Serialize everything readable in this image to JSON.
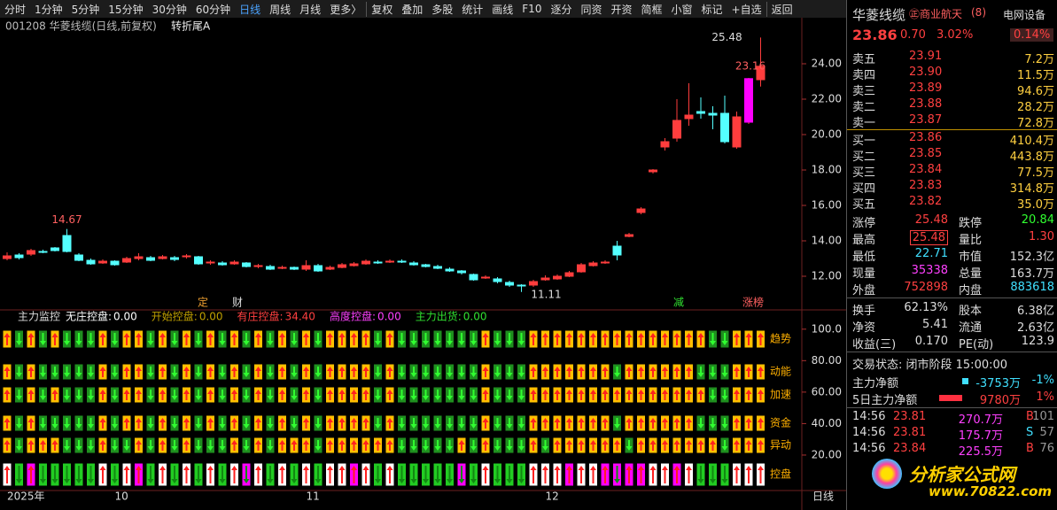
{
  "toolbar": [
    "分时",
    "1分钟",
    "5分钟",
    "15分钟",
    "30分钟",
    "60分钟",
    "日线",
    "周线",
    "月线",
    "更多〉",
    "复权",
    "叠加",
    "多股",
    "统计",
    "画线",
    "F10",
    "逐分",
    "同资",
    "开资",
    "简框",
    "小窗",
    "标记",
    "+自选",
    "返回"
  ],
  "header": {
    "code": "001208 华菱线缆(日线,前复权)",
    "indicator": "转折尾A"
  },
  "chart_data": {
    "type": "candlestick",
    "categories": [
      "2025年",
      null,
      null,
      null,
      null,
      null,
      null,
      null,
      null,
      "10",
      null,
      null,
      null,
      null,
      null,
      null,
      null,
      null,
      null,
      null,
      null,
      null,
      null,
      null,
      null,
      "11",
      null,
      null,
      null,
      null,
      null,
      null,
      null,
      null,
      null,
      null,
      null,
      null,
      null,
      null,
      null,
      null,
      null,
      null,
      null,
      "12",
      null,
      null,
      null,
      null,
      null,
      null,
      null,
      null,
      null,
      null,
      null,
      null,
      null,
      null,
      null,
      null,
      null,
      null
    ],
    "open": [
      13.0,
      13.2,
      13.25,
      13.4,
      13.6,
      14.3,
      13.2,
      12.9,
      12.75,
      12.85,
      12.8,
      13.0,
      13.05,
      13.0,
      13.05,
      13.1,
      13.1,
      12.75,
      12.75,
      12.7,
      12.75,
      12.55,
      12.55,
      12.45,
      12.5,
      12.4,
      12.6,
      12.4,
      12.5,
      12.6,
      12.7,
      12.8,
      12.8,
      12.85,
      12.75,
      12.65,
      12.55,
      12.4,
      12.3,
      12.1,
      11.9,
      11.85,
      11.65,
      11.5,
      11.5,
      11.8,
      11.85,
      12.0,
      12.25,
      12.6,
      12.75,
      13.7,
      14.25,
      15.6,
      17.9,
      19.3,
      19.8,
      20.9,
      21.3,
      21.2,
      21.2,
      19.3,
      20.7,
      23.1
    ],
    "high": [
      13.35,
      13.3,
      13.55,
      13.5,
      13.65,
      14.67,
      13.3,
      13.0,
      12.95,
      12.9,
      13.1,
      13.3,
      13.15,
      13.2,
      13.15,
      13.25,
      13.15,
      12.9,
      12.85,
      12.9,
      12.8,
      12.7,
      12.65,
      12.6,
      12.55,
      12.9,
      12.7,
      12.6,
      12.75,
      12.8,
      12.95,
      12.9,
      12.95,
      12.95,
      12.85,
      12.7,
      12.65,
      12.5,
      12.35,
      12.15,
      12.05,
      11.95,
      11.75,
      11.55,
      11.8,
      12.05,
      12.1,
      12.3,
      12.75,
      12.85,
      12.9,
      14.0,
      14.45,
      15.9,
      18.05,
      19.8,
      22.0,
      22.9,
      22.1,
      21.6,
      22.2,
      21.3,
      23.2,
      25.48
    ],
    "low": [
      12.9,
      12.95,
      13.15,
      13.3,
      13.4,
      13.35,
      12.85,
      12.65,
      12.7,
      12.6,
      12.75,
      12.9,
      12.85,
      12.95,
      12.85,
      13.0,
      12.65,
      12.65,
      12.6,
      12.65,
      12.5,
      12.45,
      12.35,
      12.4,
      12.35,
      12.3,
      12.25,
      12.35,
      12.45,
      12.55,
      12.65,
      12.7,
      12.75,
      12.75,
      12.6,
      12.5,
      12.4,
      12.25,
      12.1,
      11.75,
      11.85,
      11.6,
      11.4,
      11.11,
      11.4,
      11.75,
      11.8,
      11.95,
      12.2,
      12.55,
      12.7,
      12.9,
      14.2,
      15.5,
      17.8,
      19.1,
      19.6,
      20.5,
      20.9,
      20.3,
      19.5,
      19.2,
      20.6,
      22.71
    ],
    "close": [
      13.15,
      13.05,
      13.45,
      13.35,
      13.45,
      13.4,
      12.9,
      12.7,
      12.85,
      12.65,
      13.0,
      13.1,
      12.9,
      13.1,
      12.95,
      13.15,
      12.7,
      12.8,
      12.65,
      12.8,
      12.55,
      12.6,
      12.4,
      12.5,
      12.4,
      12.6,
      12.3,
      12.5,
      12.65,
      12.7,
      12.85,
      12.75,
      12.85,
      12.8,
      12.65,
      12.55,
      12.45,
      12.3,
      12.2,
      11.8,
      11.95,
      11.7,
      11.5,
      11.45,
      11.7,
      11.9,
      12.0,
      12.2,
      12.65,
      12.75,
      12.8,
      13.2,
      14.35,
      15.8,
      18.0,
      19.6,
      20.8,
      21.1,
      21.2,
      21.1,
      19.6,
      21.0,
      23.16,
      23.86
    ],
    "ylim": [
      10.35,
      25.6
    ],
    "yticks": [
      {
        "value": 12,
        "label": "12.00"
      },
      {
        "value": 14,
        "label": "14.00"
      },
      {
        "value": 16,
        "label": "16.00"
      },
      {
        "value": 18,
        "label": "18.00"
      },
      {
        "value": 20,
        "label": "20.00"
      },
      {
        "value": 22,
        "label": "22.00"
      },
      {
        "value": 24,
        "label": "24.00"
      }
    ],
    "markers": [
      "定",
      "财",
      "减",
      "涨榜"
    ],
    "up_color": "#ff3d3d",
    "down_color": "#54ffff",
    "period": "日线"
  },
  "indicator": {
    "name": "主力监控",
    "items": [
      {
        "name": "无庄控盘:",
        "value": "0.00"
      },
      {
        "name": "开始控盘:",
        "value": "0.00"
      },
      {
        "name": "有庄控盘:",
        "value": "34.40"
      },
      {
        "name": "高度控盘:",
        "value": "0.00"
      },
      {
        "name": "主力出货:",
        "value": "0.00"
      }
    ],
    "rows": [
      "趋势",
      "动能",
      "加速",
      "资金",
      "异动",
      "控盘"
    ],
    "ylim": [
      0,
      110
    ],
    "yticks": [
      {
        "value": 20,
        "label": "20.00"
      },
      {
        "value": 40,
        "label": "40.00"
      },
      {
        "value": 60,
        "label": "60.00"
      },
      {
        "value": 80,
        "label": "80.00"
      },
      {
        "value": 100,
        "label": "100.0"
      }
    ]
  },
  "quote": {
    "name": "华菱线缆",
    "tag": "㊣商业航天",
    "tag_count": "(8)",
    "sector": "电网设备",
    "price": "23.86",
    "change": "0.70",
    "change_pct": "3.02%",
    "sector_pct": "0.14%"
  },
  "sell": [
    {
      "label": "卖五",
      "price": "23.91",
      "volume": "7.2万"
    },
    {
      "label": "卖四",
      "price": "23.90",
      "volume": "11.5万"
    },
    {
      "label": "卖三",
      "price": "23.89",
      "volume": "94.6万"
    },
    {
      "label": "卖二",
      "price": "23.88",
      "volume": "28.2万"
    },
    {
      "label": "卖一",
      "price": "23.87",
      "volume": "72.8万"
    }
  ],
  "buy": [
    {
      "label": "买一",
      "price": "23.86",
      "volume": "410.4万"
    },
    {
      "label": "买二",
      "price": "23.85",
      "volume": "443.8万"
    },
    {
      "label": "买三",
      "price": "23.84",
      "volume": "77.5万"
    },
    {
      "label": "买四",
      "price": "23.83",
      "volume": "314.8万"
    },
    {
      "label": "买五",
      "price": "23.82",
      "volume": "35.0万"
    }
  ],
  "stats": [
    [
      {
        "label": "涨停",
        "value": "25.48"
      },
      {
        "label": "跌停",
        "value": "20.84"
      }
    ],
    [
      {
        "label": "最高",
        "value": "25.48"
      },
      {
        "label": "量比",
        "value": "1.30"
      }
    ],
    [
      {
        "label": "最低",
        "value": "22.71"
      },
      {
        "label": "市值",
        "value": "152.3亿"
      }
    ],
    [
      {
        "label": "现量",
        "value": "35338"
      },
      {
        "label": "总量",
        "value": "163.7万"
      }
    ],
    [
      {
        "label": "外盘",
        "value": "752898"
      },
      {
        "label": "内盘",
        "value": "883618"
      }
    ],
    [
      {
        "label": "换手",
        "value": "62.13%"
      },
      {
        "label": "股本",
        "value": "6.38亿"
      }
    ],
    [
      {
        "label": "净资",
        "value": "5.41"
      },
      {
        "label": "流通",
        "value": "2.63亿"
      }
    ],
    [
      {
        "label": "收益(三)",
        "value": "0.170"
      },
      {
        "label": "PE(动)",
        "value": "123.9"
      }
    ]
  ],
  "status": "交易状态: 闭市阶段 15:00:00",
  "main_flow": [
    {
      "label": "主力净额",
      "value": "-3753万",
      "pct": "-1%"
    },
    {
      "label": "5日主力净额",
      "value": "9780万",
      "pct": "1%"
    }
  ],
  "trades": [
    {
      "time": "14:56",
      "price": "23.81",
      "volume": "270.7万",
      "side": "B",
      "count": "101"
    },
    {
      "time": "14:56",
      "price": "23.81",
      "volume": "175.7万",
      "side": "S",
      "count": "57"
    },
    {
      "time": "14:56",
      "price": "23.84",
      "volume": "225.5万",
      "side": "B",
      "count": "76"
    }
  ],
  "logo": {
    "name": "分析家公式网",
    "url": "www.70822.com"
  }
}
